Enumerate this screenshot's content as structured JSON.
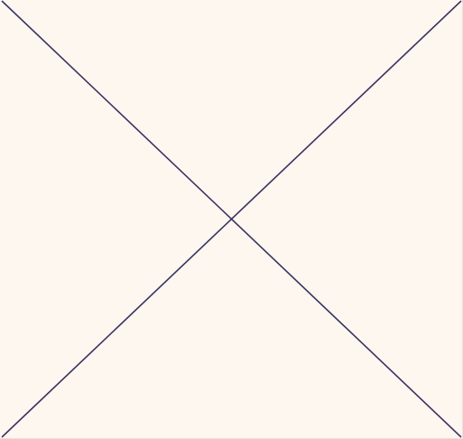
{
  "canvas": {
    "background_color": "#fdf7f0",
    "line_color": "#3a3461",
    "icon": "x-cross-icon"
  }
}
